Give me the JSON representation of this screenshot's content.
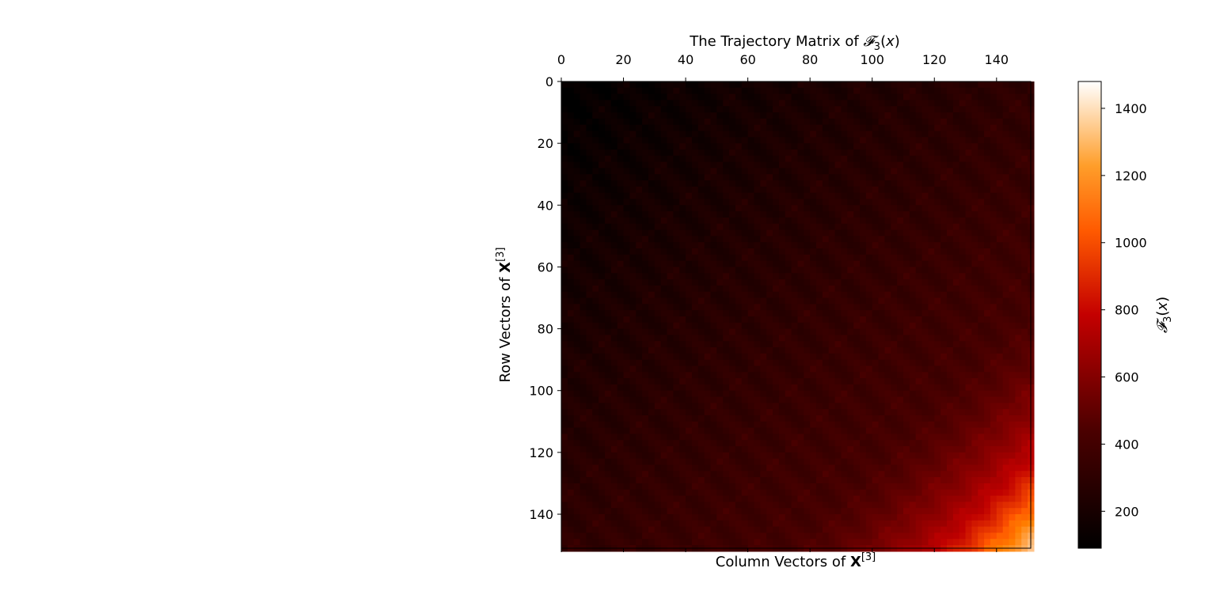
{
  "chart_data": {
    "type": "heatmap",
    "title": "The Trajectory Matrix of 𝓕₃(x)",
    "xlabel": "Column Vectors of X[3]",
    "ylabel": "Row Vectors of X[3]",
    "colorbar_label": "𝓕₃(x)",
    "x_ticks": [
      "0",
      "20",
      "40",
      "60",
      "80",
      "100",
      "120",
      "140"
    ],
    "y_ticks": [
      "0",
      "20",
      "40",
      "60",
      "80",
      "100",
      "120",
      "140"
    ],
    "colorbar_ticks": [
      "200",
      "400",
      "600",
      "800",
      "1000",
      "1200",
      "1400"
    ],
    "xlim": [
      0,
      151
    ],
    "ylim": [
      0,
      151
    ],
    "colorbar_range": [
      90,
      1480
    ],
    "colormap": "gist_heat",
    "x_axis_position": "top",
    "grid": false,
    "colors": {
      "low": "#000000",
      "mid": "#c40000",
      "high_mid": "#ff8a00",
      "high": "#ffffff"
    },
    "description_values": {
      "rows": 151,
      "cols": 151,
      "anti_diagonal_structure": "values depend on row + column index, increasing toward bottom-right"
    }
  }
}
